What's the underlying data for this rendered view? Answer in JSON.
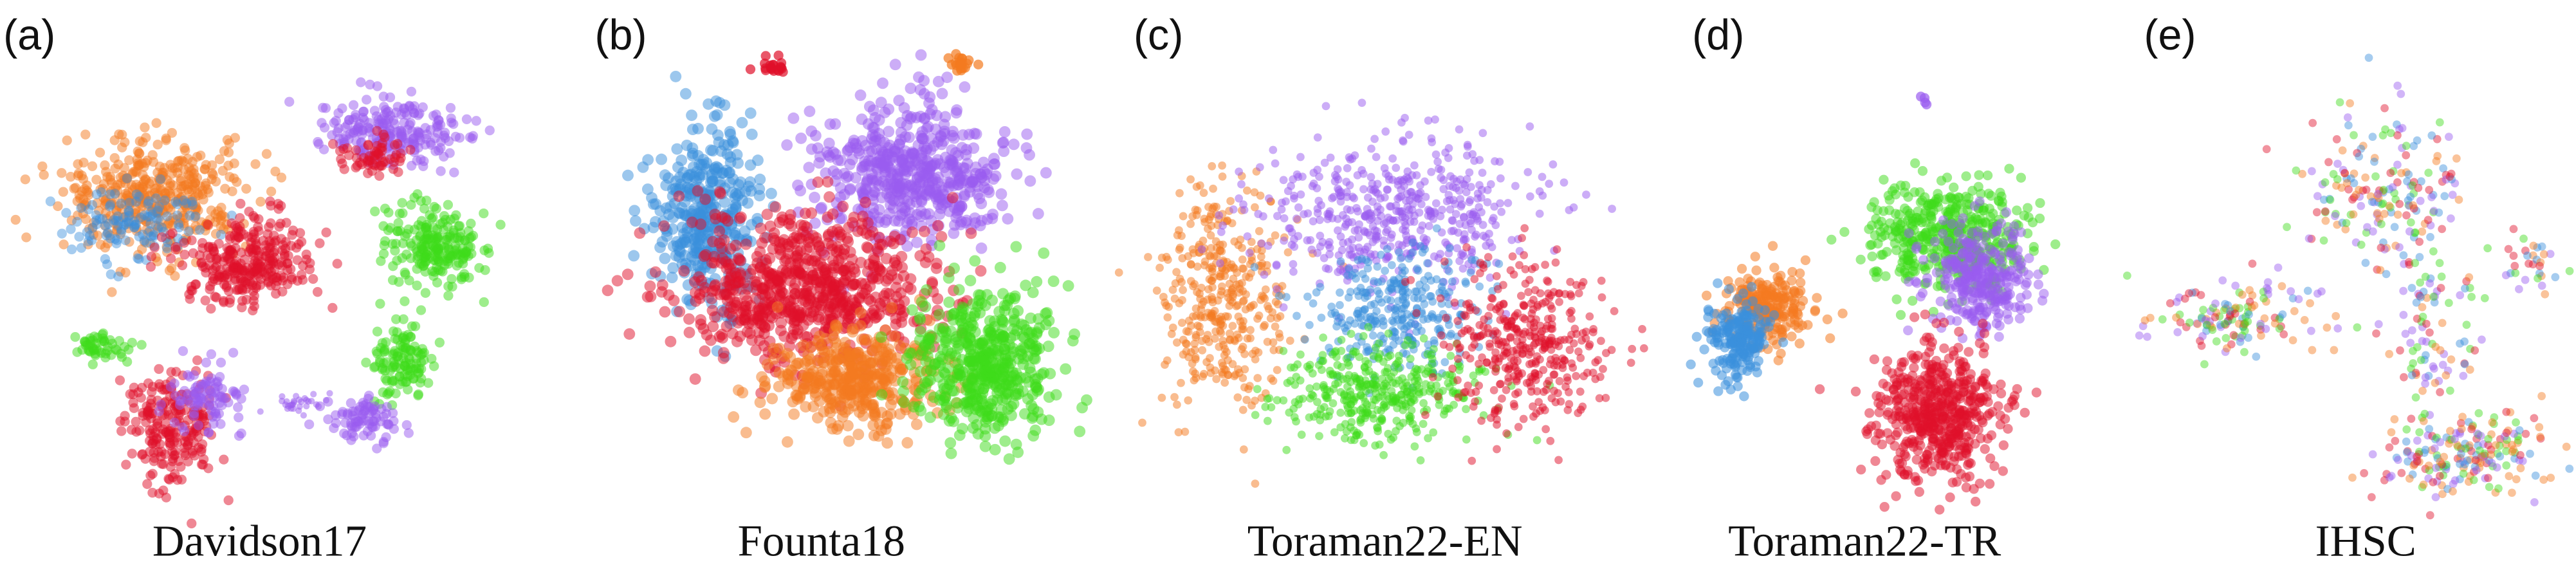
{
  "panels": [
    {
      "label": "(a)",
      "caption": "Davidson17"
    },
    {
      "label": "(b)",
      "caption": "Founta18"
    },
    {
      "label": "(c)",
      "caption": "Toraman22-EN"
    },
    {
      "label": "(d)",
      "caption": "Toraman22-TR"
    },
    {
      "label": "(e)",
      "caption": "IHSC"
    }
  ]
}
